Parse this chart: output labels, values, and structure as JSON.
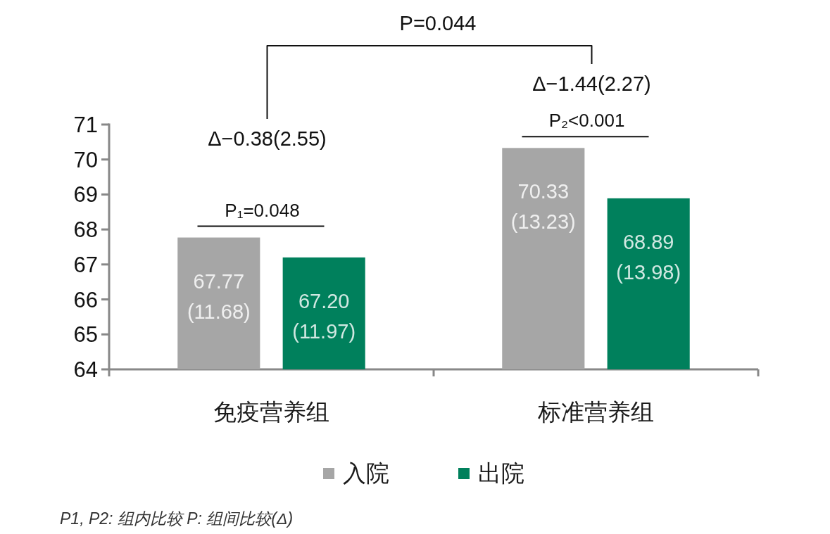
{
  "chart_data": {
    "type": "bar",
    "categories": [
      "免疫营养组",
      "标准营养组"
    ],
    "series": [
      {
        "name": "入院",
        "color": "#a6a6a6",
        "values": [
          67.77,
          70.33
        ],
        "value_labels": [
          "67.77\n(11.68)",
          "70.33\n(13.23)"
        ]
      },
      {
        "name": "出院",
        "color": "#00805c",
        "values": [
          67.2,
          68.89
        ],
        "value_labels": [
          "67.20\n(11.97)",
          "68.89\n(13.98)"
        ]
      }
    ],
    "ylim": [
      64,
      71
    ],
    "yticks": [
      64,
      65,
      66,
      67,
      68,
      69,
      70,
      71
    ],
    "legend": "bottom",
    "annotations": [
      "P=0.044",
      "Δ−0.38(2.55)",
      "Δ−1.44(2.27)",
      "P₁=0.048",
      "P₂<0.001",
      "P1, P2: 组内比较 P: 组间比较(Δ)"
    ]
  }
}
